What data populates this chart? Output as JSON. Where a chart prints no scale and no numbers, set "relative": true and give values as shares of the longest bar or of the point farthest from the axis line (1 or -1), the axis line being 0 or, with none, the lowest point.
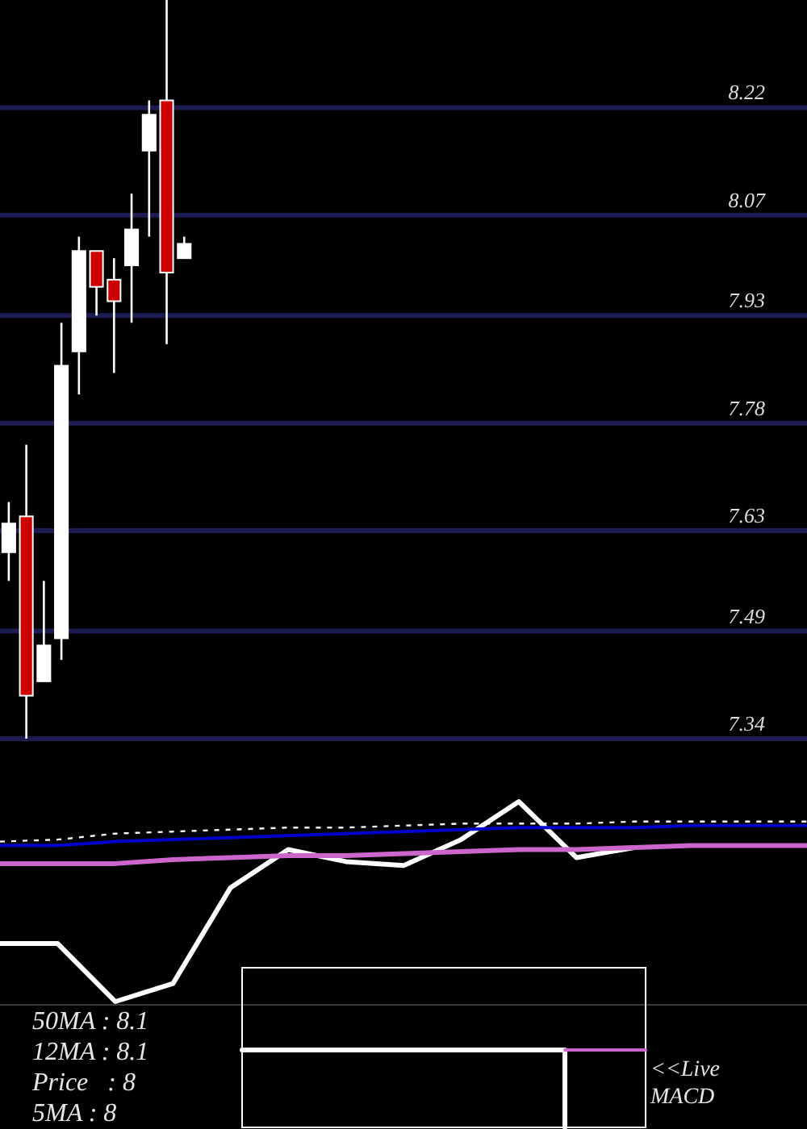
{
  "chart_data": [
    {
      "type": "candlestick",
      "categories": [
        null,
        null,
        null,
        null,
        null,
        null,
        null,
        null,
        null,
        null,
        null,
        null,
        null,
        null,
        null,
        null,
        null,
        null,
        null,
        null,
        null,
        null,
        null,
        null,
        null,
        null,
        null,
        null,
        null,
        null,
        null,
        null,
        null,
        null,
        null,
        null,
        null,
        null,
        null,
        null,
        null,
        null,
        null,
        null,
        null,
        null
      ],
      "ohlc": [
        [
          7.6,
          7.67,
          7.56,
          7.64
        ],
        [
          7.65,
          7.75,
          7.34,
          7.4
        ],
        [
          7.42,
          7.56,
          7.42,
          7.47
        ],
        [
          7.48,
          7.92,
          7.45,
          7.86
        ],
        [
          7.88,
          8.04,
          7.82,
          8.02
        ],
        [
          8.02,
          8.02,
          7.93,
          7.97
        ],
        [
          7.98,
          8.01,
          7.85,
          7.95
        ],
        [
          8.0,
          8.1,
          7.92,
          8.05
        ],
        [
          8.16,
          8.23,
          8.04,
          8.21
        ],
        [
          8.23,
          8.37,
          7.89,
          7.99
        ],
        [
          8.01,
          8.04,
          8.01,
          8.03
        ],
        null,
        null,
        null,
        null,
        null,
        null,
        null,
        null,
        null,
        null,
        null,
        null,
        null,
        null,
        null,
        null,
        null,
        null,
        null,
        null,
        null,
        null,
        null,
        null,
        null,
        null,
        null,
        null,
        null,
        null,
        null,
        null,
        null,
        null,
        null
      ],
      "colors": [
        "#ffffff",
        "#cc0000",
        "#ffffff",
        "#ffffff",
        "#ffffff",
        "#cc0000",
        "#cc0000",
        "#ffffff",
        "#ffffff",
        "#cc0000",
        "#ffffff",
        null,
        null,
        null,
        null,
        null,
        null,
        null,
        null,
        null,
        null,
        null,
        null,
        null,
        null,
        null,
        null,
        null,
        null,
        null,
        null,
        null,
        null,
        null,
        null,
        null,
        null,
        null,
        null,
        null,
        null,
        null,
        null,
        null,
        null,
        null
      ],
      "ylim": [
        7.34,
        8.37
      ],
      "yticks": [
        8.22,
        8.07,
        7.93,
        7.78,
        7.63,
        7.49,
        7.34
      ],
      "grid": "y",
      "tick_labels": "y"
    },
    {
      "type": "line",
      "categories": [
        null,
        null,
        null,
        null,
        null,
        null,
        null,
        null,
        null,
        null,
        null,
        null,
        null,
        null,
        null
      ],
      "relative": true,
      "tick_labels": false,
      "series": [
        {
          "color": "#ffffff",
          "values": [
            0.29,
            0.29,
            0,
            0.09,
            0.57,
            0.76,
            0.7,
            0.68,
            0.81,
            1,
            0.72,
            0.77,
            null,
            null,
            null
          ]
        },
        {
          "color": "#0000cc",
          "values": [
            0.78,
            0.78,
            0.8,
            0.81,
            0.82,
            0.83,
            0.84,
            0.85,
            0.86,
            0.87,
            0.87,
            0.87,
            0.88,
            0.88,
            0.88
          ]
        },
        {
          "color": "#cc66cc",
          "values": [
            0.69,
            0.69,
            0.69,
            0.71,
            0.72,
            0.73,
            0.73,
            0.74,
            0.75,
            0.76,
            0.76,
            0.77,
            0.78,
            0.78,
            0.78
          ]
        },
        {
          "color": "#ffffff",
          "line_style": "dotted",
          "values": [
            0.8,
            0.81,
            0.84,
            0.85,
            0.86,
            0.87,
            0.87,
            0.88,
            0.89,
            0.89,
            0.89,
            0.9,
            0.9,
            0.9,
            0.9
          ]
        }
      ],
      "annotations": [
        "50MA : 8.1",
        "12MA : 8.1",
        "Price   : 8",
        "5MA : 8"
      ]
    },
    {
      "type": "step",
      "categories": [
        null,
        null,
        null,
        null,
        null,
        null
      ],
      "relative": true,
      "tick_labels": false,
      "series": [
        {
          "color": "#ffffff",
          "values": [
            1,
            1,
            1,
            1,
            0,
            null
          ]
        },
        {
          "color": "#cc66cc",
          "values": [
            null,
            null,
            null,
            null,
            1,
            1
          ]
        }
      ],
      "annotations": [
        "<<Live MACD"
      ]
    }
  ]
}
